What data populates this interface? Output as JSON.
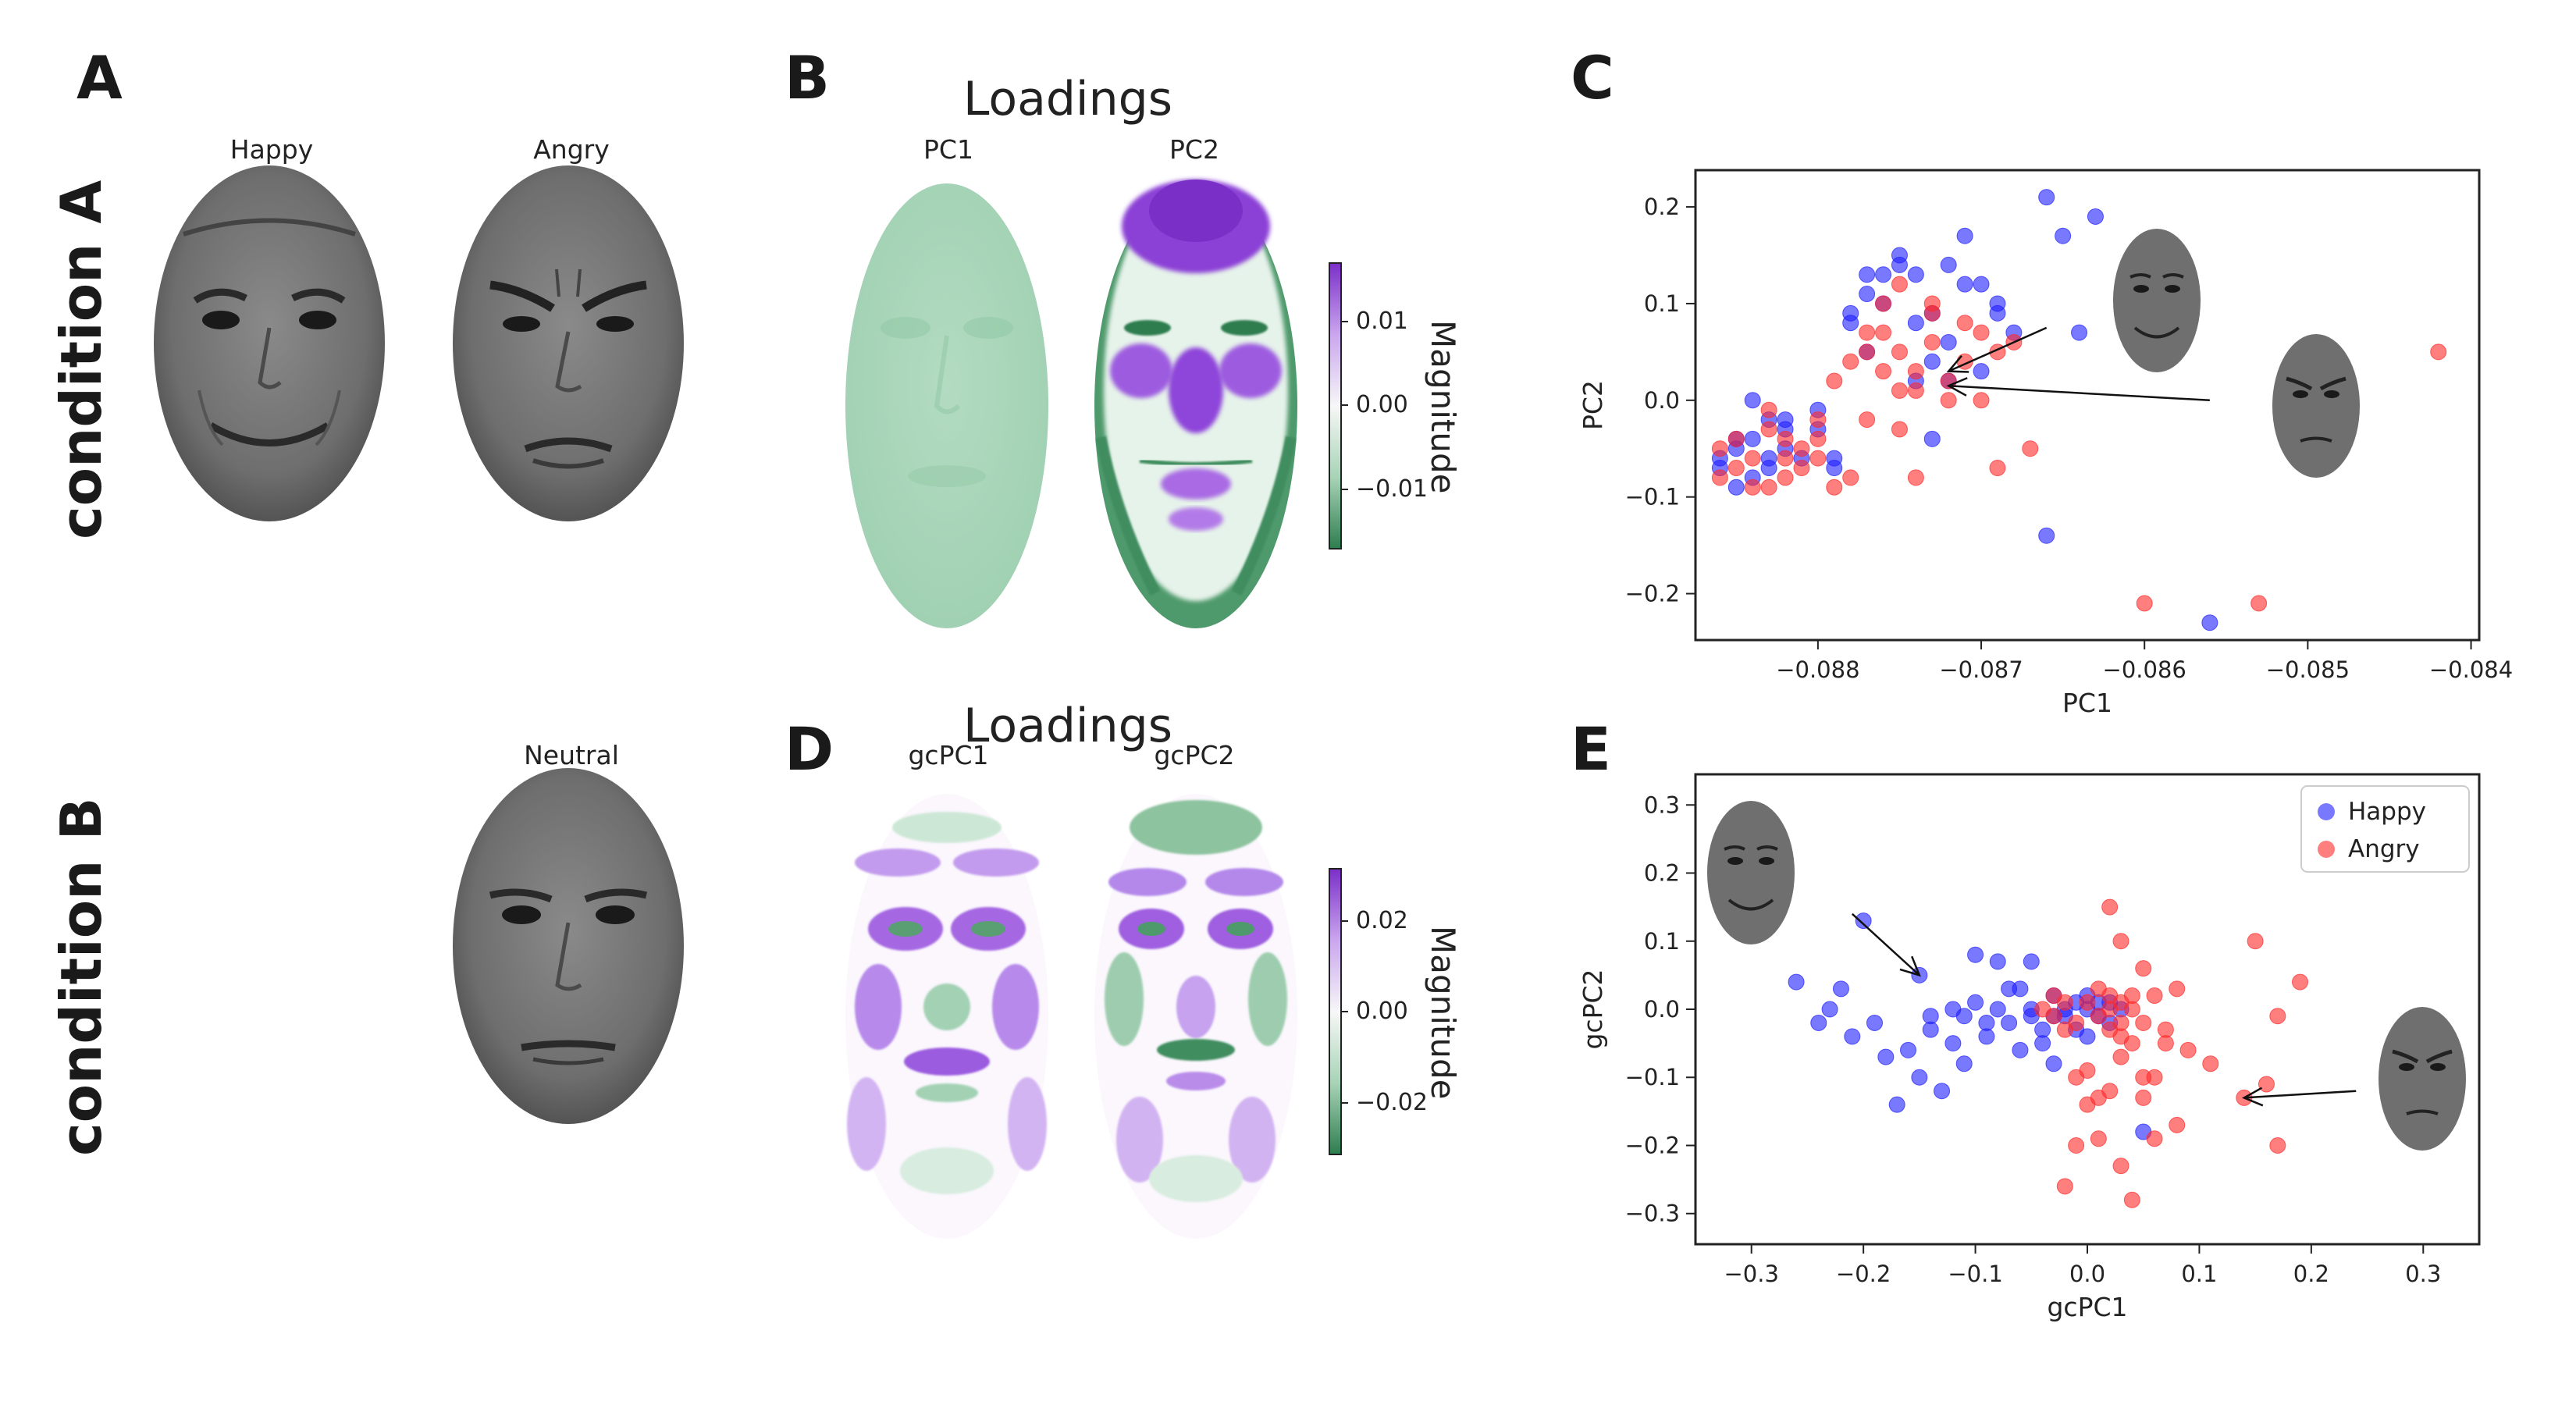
{
  "panels": {
    "A": "A",
    "B": "B",
    "C": "C",
    "D": "D",
    "E": "E"
  },
  "conditions": {
    "a": "condition A",
    "b": "condition B"
  },
  "faces": {
    "happy": "Happy",
    "angry": "Angry",
    "neutral": "Neutral"
  },
  "loadings_b": {
    "title": "Loadings",
    "pc1": "PC1",
    "pc2": "PC2",
    "colorbar_label": "Magnitude",
    "ticks": [
      "0.01",
      "0.00",
      "−0.01"
    ]
  },
  "loadings_d": {
    "title": "Loadings",
    "pc1": "gcPC1",
    "pc2": "gcPC2",
    "colorbar_label": "Magnitude",
    "ticks": [
      "0.02",
      "0.00",
      "−0.02"
    ]
  },
  "colors": {
    "happy": "#1f1fff",
    "angry": "#ff2a2a",
    "purple": "#8a2be2",
    "green": "#2e7d4f"
  },
  "chart_data": [
    {
      "panel": "C",
      "type": "scatter",
      "xlabel": "PC1",
      "ylabel": "PC2",
      "xlim": [
        -0.08875,
        -0.08395
      ],
      "ylim": [
        -0.248,
        0.238
      ],
      "xticks": [
        -0.088,
        -0.087,
        -0.086,
        -0.085,
        -0.084
      ],
      "xticklabels": [
        "−0.088",
        "−0.087",
        "−0.086",
        "−0.085",
        "−0.084"
      ],
      "yticks": [
        -0.2,
        -0.1,
        0.0,
        0.1,
        0.2
      ],
      "yticklabels": [
        "−0.2",
        "−0.1",
        "0.0",
        "0.1",
        "0.2"
      ],
      "series": [
        {
          "name": "Happy",
          "points": [
            [
              -0.0884,
              0.0
            ],
            [
              -0.0883,
              -0.02
            ],
            [
              -0.0885,
              -0.04
            ],
            [
              -0.0882,
              -0.05
            ],
            [
              -0.0886,
              -0.06
            ],
            [
              -0.0883,
              -0.07
            ],
            [
              -0.0884,
              -0.08
            ],
            [
              -0.0882,
              -0.03
            ],
            [
              -0.0881,
              -0.06
            ],
            [
              -0.0885,
              -0.09
            ],
            [
              -0.088,
              -0.03
            ],
            [
              -0.0879,
              -0.07
            ],
            [
              -0.0878,
              0.08
            ],
            [
              -0.0877,
              0.05
            ],
            [
              -0.0876,
              0.1
            ],
            [
              -0.0875,
              0.15
            ],
            [
              -0.0874,
              0.13
            ],
            [
              -0.0873,
              0.09
            ],
            [
              -0.0872,
              0.06
            ],
            [
              -0.0871,
              0.17
            ],
            [
              -0.087,
              0.12
            ],
            [
              -0.0869,
              0.09
            ],
            [
              -0.0868,
              0.07
            ],
            [
              -0.0866,
              0.21
            ],
            [
              -0.0865,
              0.17
            ],
            [
              -0.0863,
              0.19
            ],
            [
              -0.0872,
              0.02
            ],
            [
              -0.0873,
              0.04
            ],
            [
              -0.0874,
              0.08
            ],
            [
              -0.0876,
              0.13
            ],
            [
              -0.0877,
              0.11
            ],
            [
              -0.0878,
              0.09
            ],
            [
              -0.0875,
              0.14
            ],
            [
              -0.0871,
              0.12
            ],
            [
              -0.0879,
              -0.06
            ],
            [
              -0.088,
              -0.01
            ],
            [
              -0.0864,
              0.07
            ],
            [
              -0.0866,
              -0.14
            ],
            [
              -0.0856,
              -0.23
            ],
            [
              -0.0873,
              -0.04
            ],
            [
              -0.0882,
              -0.02
            ],
            [
              -0.0884,
              -0.04
            ],
            [
              -0.0886,
              -0.07
            ],
            [
              -0.0885,
              -0.05
            ],
            [
              -0.0883,
              -0.06
            ],
            [
              -0.0869,
              0.1
            ],
            [
              -0.0872,
              0.14
            ],
            [
              -0.0877,
              0.13
            ],
            [
              -0.0874,
              0.02
            ],
            [
              -0.087,
              0.03
            ]
          ]
        },
        {
          "name": "Angry",
          "points": [
            [
              -0.0885,
              -0.04
            ],
            [
              -0.0884,
              -0.06
            ],
            [
              -0.0883,
              -0.03
            ],
            [
              -0.0882,
              -0.08
            ],
            [
              -0.0886,
              -0.05
            ],
            [
              -0.0881,
              -0.07
            ],
            [
              -0.0884,
              -0.09
            ],
            [
              -0.0883,
              -0.01
            ],
            [
              -0.0882,
              -0.04
            ],
            [
              -0.088,
              -0.02
            ],
            [
              -0.0879,
              0.02
            ],
            [
              -0.0878,
              0.04
            ],
            [
              -0.0877,
              0.07
            ],
            [
              -0.0876,
              0.03
            ],
            [
              -0.0875,
              0.05
            ],
            [
              -0.0874,
              0.01
            ],
            [
              -0.0873,
              0.06
            ],
            [
              -0.0872,
              0.02
            ],
            [
              -0.0871,
              0.08
            ],
            [
              -0.087,
              0.0
            ],
            [
              -0.0876,
              0.1
            ],
            [
              -0.0875,
              0.12
            ],
            [
              -0.0873,
              0.09
            ],
            [
              -0.0869,
              0.05
            ],
            [
              -0.0867,
              -0.05
            ],
            [
              -0.0868,
              0.06
            ],
            [
              -0.0874,
              -0.08
            ],
            [
              -0.0879,
              -0.09
            ],
            [
              -0.0877,
              -0.02
            ],
            [
              -0.0875,
              -0.03
            ],
            [
              -0.086,
              -0.21
            ],
            [
              -0.0853,
              -0.21
            ],
            [
              -0.0842,
              0.05
            ],
            [
              -0.0869,
              -0.07
            ],
            [
              -0.088,
              -0.06
            ],
            [
              -0.0878,
              -0.08
            ],
            [
              -0.0881,
              -0.05
            ],
            [
              -0.0885,
              -0.07
            ],
            [
              -0.0883,
              -0.09
            ],
            [
              -0.0886,
              -0.08
            ],
            [
              -0.0872,
              0.0
            ],
            [
              -0.0874,
              0.03
            ],
            [
              -0.0876,
              0.07
            ],
            [
              -0.0873,
              0.1
            ],
            [
              -0.0871,
              0.04
            ],
            [
              -0.087,
              0.07
            ],
            [
              -0.0877,
              0.05
            ],
            [
              -0.0875,
              0.01
            ],
            [
              -0.0882,
              -0.06
            ],
            [
              -0.088,
              -0.04
            ]
          ]
        }
      ],
      "annotations": [
        {
          "tip": [
            -0.0872,
            0.03
          ],
          "tail": [
            -0.0866,
            0.075
          ]
        },
        {
          "tip": [
            -0.0872,
            0.015
          ],
          "tail": [
            -0.0856,
            0.0
          ]
        }
      ]
    },
    {
      "panel": "E",
      "type": "scatter",
      "xlabel": "gcPC1",
      "ylabel": "gcPC2",
      "xlim": [
        -0.35,
        0.35
      ],
      "ylim": [
        -0.345,
        0.345
      ],
      "xticks": [
        -0.3,
        -0.2,
        -0.1,
        0.0,
        0.1,
        0.2,
        0.3
      ],
      "xticklabels": [
        "−0.3",
        "−0.2",
        "−0.1",
        "0.0",
        "0.1",
        "0.2",
        "0.3"
      ],
      "yticks": [
        -0.3,
        -0.2,
        -0.1,
        0.0,
        0.1,
        0.2,
        0.3
      ],
      "yticklabels": [
        "−0.3",
        "−0.2",
        "−0.1",
        "0.0",
        "0.1",
        "0.2",
        "0.3"
      ],
      "legend": {
        "position": "top-right",
        "entries": [
          "Happy",
          "Angry"
        ]
      },
      "series": [
        {
          "name": "Happy",
          "points": [
            [
              -0.26,
              0.04
            ],
            [
              -0.24,
              -0.02
            ],
            [
              -0.23,
              0.0
            ],
            [
              -0.21,
              -0.04
            ],
            [
              -0.2,
              0.13
            ],
            [
              -0.18,
              -0.07
            ],
            [
              -0.17,
              -0.14
            ],
            [
              -0.16,
              -0.06
            ],
            [
              -0.15,
              0.05
            ],
            [
              -0.15,
              -0.1
            ],
            [
              -0.14,
              -0.03
            ],
            [
              -0.13,
              -0.12
            ],
            [
              -0.12,
              0.0
            ],
            [
              -0.12,
              -0.05
            ],
            [
              -0.11,
              -0.08
            ],
            [
              -0.1,
              0.08
            ],
            [
              -0.1,
              0.01
            ],
            [
              -0.09,
              -0.04
            ],
            [
              -0.08,
              0.07
            ],
            [
              -0.08,
              0.0
            ],
            [
              -0.07,
              -0.02
            ],
            [
              -0.06,
              0.03
            ],
            [
              -0.06,
              -0.06
            ],
            [
              -0.05,
              0.07
            ],
            [
              -0.05,
              0.0
            ],
            [
              -0.04,
              -0.03
            ],
            [
              -0.04,
              -0.05
            ],
            [
              -0.03,
              0.02
            ],
            [
              -0.03,
              -0.08
            ],
            [
              -0.02,
              0.0
            ],
            [
              -0.02,
              -0.01
            ],
            [
              -0.01,
              0.01
            ],
            [
              -0.01,
              -0.03
            ],
            [
              0.0,
              0.02
            ],
            [
              0.0,
              -0.04
            ],
            [
              0.01,
              -0.01
            ],
            [
              0.02,
              0.01
            ],
            [
              0.02,
              -0.02
            ],
            [
              0.03,
              0.0
            ],
            [
              0.05,
              -0.18
            ],
            [
              -0.22,
              0.03
            ],
            [
              -0.19,
              -0.02
            ],
            [
              -0.14,
              -0.01
            ],
            [
              -0.11,
              -0.01
            ],
            [
              -0.09,
              -0.02
            ],
            [
              -0.07,
              0.03
            ],
            [
              -0.05,
              -0.01
            ],
            [
              -0.03,
              -0.01
            ],
            [
              0.0,
              0.0
            ],
            [
              0.01,
              0.01
            ]
          ]
        },
        {
          "name": "Angry",
          "points": [
            [
              -0.04,
              0.0
            ],
            [
              -0.03,
              -0.01
            ],
            [
              -0.02,
              0.01
            ],
            [
              -0.01,
              -0.02
            ],
            [
              0.0,
              0.01
            ],
            [
              0.01,
              -0.01
            ],
            [
              0.02,
              0.02
            ],
            [
              0.02,
              -0.03
            ],
            [
              0.03,
              0.01
            ],
            [
              0.03,
              -0.04
            ],
            [
              0.04,
              0.0
            ],
            [
              0.05,
              -0.02
            ],
            [
              0.06,
              0.02
            ],
            [
              0.07,
              -0.05
            ],
            [
              0.02,
              0.15
            ],
            [
              0.03,
              0.1
            ],
            [
              0.05,
              0.06
            ],
            [
              0.08,
              0.03
            ],
            [
              0.09,
              -0.06
            ],
            [
              0.11,
              -0.08
            ],
            [
              0.15,
              0.1
            ],
            [
              0.17,
              -0.01
            ],
            [
              0.19,
              0.04
            ],
            [
              0.14,
              -0.13
            ],
            [
              0.16,
              -0.11
            ],
            [
              0.17,
              -0.2
            ],
            [
              -0.01,
              -0.1
            ],
            [
              0.0,
              -0.14
            ],
            [
              0.01,
              -0.19
            ],
            [
              0.02,
              -0.12
            ],
            [
              0.03,
              -0.23
            ],
            [
              0.04,
              -0.28
            ],
            [
              0.05,
              -0.1
            ],
            [
              0.06,
              -0.19
            ],
            [
              0.08,
              -0.17
            ],
            [
              -0.02,
              -0.26
            ],
            [
              -0.01,
              -0.2
            ],
            [
              0.0,
              -0.09
            ],
            [
              0.01,
              -0.13
            ],
            [
              0.03,
              -0.07
            ],
            [
              0.04,
              -0.05
            ],
            [
              0.05,
              -0.13
            ],
            [
              -0.03,
              0.02
            ],
            [
              -0.02,
              -0.03
            ],
            [
              0.01,
              0.03
            ],
            [
              0.02,
              0.0
            ],
            [
              0.03,
              -0.02
            ],
            [
              0.04,
              0.02
            ],
            [
              0.06,
              -0.1
            ],
            [
              0.07,
              -0.03
            ]
          ]
        }
      ],
      "annotations": [
        {
          "tip": [
            -0.15,
            0.05
          ],
          "tail": [
            -0.21,
            0.14
          ]
        },
        {
          "tip": [
            0.14,
            -0.13
          ],
          "tail": [
            0.24,
            -0.12
          ]
        }
      ]
    }
  ]
}
